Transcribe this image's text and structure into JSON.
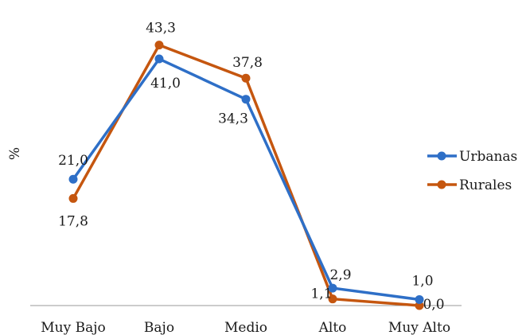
{
  "chart_data": {
    "type": "line",
    "title": "",
    "xlabel": "",
    "ylabel": "%",
    "ylim": [
      0,
      45
    ],
    "grid": false,
    "legend": "right",
    "categories": [
      "Muy Bajo",
      "Bajo",
      "Medio",
      "Alto",
      "Muy Alto"
    ],
    "series": [
      {
        "name": "Urbanas",
        "color": "#2e6fc7",
        "values": [
          21.0,
          41.0,
          34.3,
          2.9,
          1.0
        ],
        "labels": [
          "21,0",
          "41,0",
          "34,3",
          "2,9",
          "1,0"
        ]
      },
      {
        "name": "Rurales",
        "color": "#c5560f",
        "values": [
          17.8,
          43.3,
          37.8,
          1.1,
          0.0
        ],
        "labels": [
          "17,8",
          "43,3",
          "37,8",
          "1,1",
          "0,0"
        ]
      }
    ]
  }
}
